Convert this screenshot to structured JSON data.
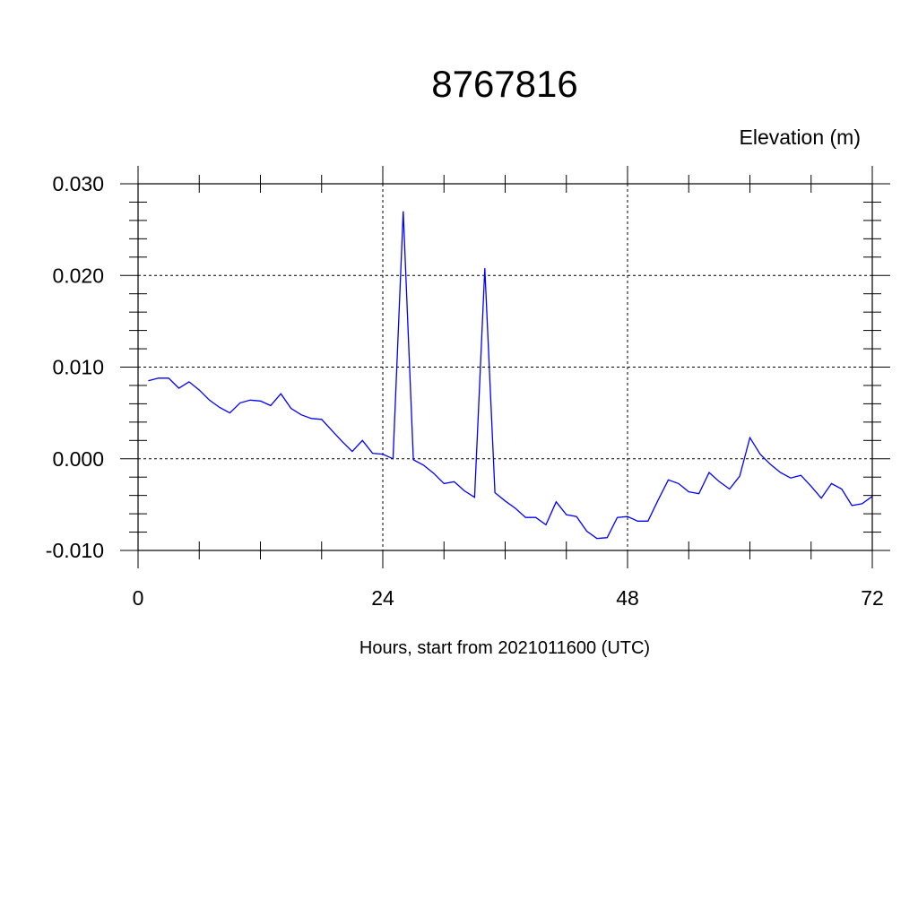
{
  "chart_data": {
    "type": "line",
    "title": "8767816",
    "ylabel": "Elevation (m)",
    "xlabel": "Hours, start from 2021011600 (UTC)",
    "xlim": [
      0,
      72
    ],
    "ylim": [
      -0.01,
      0.03
    ],
    "xticks": [
      0,
      24,
      48,
      72
    ],
    "xtick_labels": [
      "0",
      "24",
      "48",
      "72"
    ],
    "yticks": [
      -0.01,
      0.0,
      0.01,
      0.02,
      0.03
    ],
    "ytick_labels": [
      "-0.010",
      "0.000",
      "0.010",
      "0.020",
      "0.030"
    ],
    "grid": true,
    "legend": "none",
    "line_color": "#0000ff",
    "series": [
      {
        "x": [
          1,
          2,
          3,
          4,
          5,
          6,
          7,
          8,
          9,
          10,
          11,
          12,
          13,
          14,
          15,
          16,
          17,
          18,
          19,
          20,
          21,
          22,
          23,
          24,
          25,
          26,
          27,
          28,
          29,
          30,
          31,
          32,
          33,
          34,
          35,
          36,
          37,
          38,
          39,
          40,
          41,
          42,
          43,
          44,
          45,
          46,
          47,
          48,
          49,
          50,
          51,
          52,
          53,
          54,
          55,
          56,
          57,
          58,
          59,
          60,
          61,
          62,
          63,
          64,
          65,
          66,
          67,
          68,
          69,
          70,
          71,
          72
        ],
        "y": [
          0.0085,
          0.0088,
          0.0088,
          0.0077,
          0.0084,
          0.0075,
          0.0064,
          0.0056,
          0.005,
          0.0061,
          0.0064,
          0.0063,
          0.0058,
          0.0071,
          0.0055,
          0.0048,
          0.0044,
          0.0043,
          0.0031,
          0.0019,
          0.0008,
          0.002,
          0.0006,
          0.0005,
          0.0,
          0.027,
          -0.0001,
          -0.0007,
          -0.0016,
          -0.0027,
          -0.0025,
          -0.0035,
          -0.0042,
          0.0208,
          -0.0037,
          -0.0046,
          -0.0054,
          -0.0064,
          -0.0064,
          -0.0072,
          -0.0047,
          -0.0061,
          -0.0063,
          -0.0079,
          -0.0087,
          -0.0086,
          -0.0064,
          -0.0063,
          -0.0068,
          -0.0068,
          -0.0045,
          -0.0023,
          -0.0027,
          -0.0036,
          -0.0038,
          -0.0015,
          -0.0025,
          -0.0033,
          -0.0019,
          0.0023,
          0.0005,
          -0.0006,
          -0.0015,
          -0.0021,
          -0.0018,
          -0.003,
          -0.0043,
          -0.0027,
          -0.0033,
          -0.0051,
          -0.0049,
          -0.0041
        ]
      }
    ]
  }
}
